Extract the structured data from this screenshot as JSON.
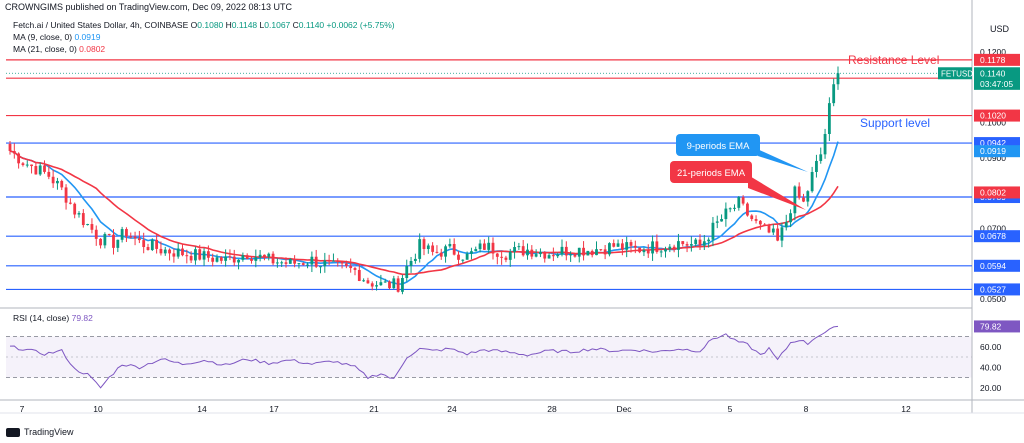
{
  "publisher": "CROWNGIMS published on TradingView.com, Dec 09, 2022 08:13 UTC",
  "symbol_line": {
    "name": "Fetch.ai / United States Dollar, 4h, COINBASE",
    "o_label": "O",
    "o": "0.1080",
    "h_label": "H",
    "h": "0.1148",
    "l_label": "L",
    "l": "0.1067",
    "c_label": "C",
    "c": "0.1140",
    "chg": "+0.0062 (+5.75%)"
  },
  "ma9": {
    "label": "MA (9, close, 0)",
    "value": "0.0919",
    "color": "#2196f3"
  },
  "ma21": {
    "label": "MA (21, close, 0)",
    "value": "0.0802",
    "color": "#f23645"
  },
  "rsi_line": {
    "label": "RSI (14, close)",
    "value": "79.82",
    "color": "#7e57c2"
  },
  "footer": {
    "brand": "TradingView"
  },
  "chart_data": {
    "type": "candlestick",
    "currency": "USD",
    "price_axis": {
      "ylim": [
        0.048,
        0.124
      ],
      "ticks": [
        "0.1200",
        "0.1000",
        "0.0900",
        "0.0700",
        "0.0500"
      ]
    },
    "rsi_axis": {
      "ylim": [
        10,
        90
      ],
      "ticks": [
        "60.00",
        "40.00",
        "20.00"
      ]
    },
    "x_ticks": [
      "7",
      "10",
      "14",
      "17",
      "21",
      "24",
      "28",
      "Dec",
      "5",
      "8",
      "12"
    ],
    "horizontal_levels": [
      {
        "value": 0.1178,
        "label": "0.1178",
        "color": "#f23645"
      },
      {
        "value": 0.1126,
        "label": "0.1126",
        "color": "#f23645"
      },
      {
        "value": 0.102,
        "label": "0.1020",
        "color": "#f23645"
      },
      {
        "value": 0.0942,
        "label": "0.0942",
        "color": "#2962ff"
      },
      {
        "value": 0.0789,
        "label": "0.0789",
        "color": "#2962ff"
      },
      {
        "value": 0.0678,
        "label": "0.0678",
        "color": "#2962ff"
      },
      {
        "value": 0.0594,
        "label": "0.0594",
        "color": "#2962ff"
      },
      {
        "value": 0.0527,
        "label": "0.0527",
        "color": "#2962ff"
      }
    ],
    "price_labels": [
      {
        "text": "0.1140",
        "value": 0.114,
        "color": "#089981"
      },
      {
        "text": "03:47:05",
        "value": 0.111,
        "color": "#089981"
      },
      {
        "text": "0.0919",
        "value": 0.0919,
        "color": "#2196f3"
      },
      {
        "text": "0.0802",
        "value": 0.0802,
        "color": "#f23645"
      }
    ],
    "symbol_tag": "FETUSD",
    "annotations": {
      "resistance": "Resistance Level",
      "support": "Support level",
      "ema9": "9-periods EMA",
      "ema21": "21-periods EMA"
    },
    "rsi_marker": "79.82",
    "key_path": [
      [
        0,
        0.092
      ],
      [
        3,
        0.089
      ],
      [
        6,
        0.087
      ],
      [
        9,
        0.085
      ],
      [
        12,
        0.081
      ],
      [
        15,
        0.075
      ],
      [
        18,
        0.071
      ],
      [
        21,
        0.067
      ],
      [
        24,
        0.066
      ],
      [
        27,
        0.069
      ],
      [
        30,
        0.066
      ],
      [
        35,
        0.064
      ],
      [
        40,
        0.063
      ],
      [
        45,
        0.062
      ],
      [
        50,
        0.061
      ],
      [
        55,
        0.063
      ],
      [
        60,
        0.061
      ],
      [
        65,
        0.06
      ],
      [
        70,
        0.061
      ],
      [
        75,
        0.059
      ],
      [
        80,
        0.058
      ],
      [
        83,
        0.055
      ],
      [
        86,
        0.054
      ],
      [
        90,
        0.054
      ],
      [
        92,
        0.059
      ],
      [
        95,
        0.065
      ],
      [
        98,
        0.063
      ],
      [
        102,
        0.064
      ],
      [
        106,
        0.062
      ],
      [
        110,
        0.065
      ],
      [
        115,
        0.063
      ],
      [
        120,
        0.064
      ],
      [
        125,
        0.063
      ],
      [
        130,
        0.064
      ],
      [
        135,
        0.064
      ],
      [
        140,
        0.065
      ],
      [
        145,
        0.064
      ],
      [
        150,
        0.065
      ],
      [
        155,
        0.066
      ],
      [
        160,
        0.065
      ],
      [
        163,
        0.07
      ],
      [
        166,
        0.074
      ],
      [
        169,
        0.077
      ],
      [
        171,
        0.074
      ],
      [
        174,
        0.07
      ],
      [
        177,
        0.068
      ],
      [
        178,
        0.066
      ],
      [
        180,
        0.072
      ],
      [
        182,
        0.08
      ],
      [
        184,
        0.077
      ],
      [
        186,
        0.085
      ],
      [
        188,
        0.091
      ],
      [
        189,
        0.097
      ],
      [
        190,
        0.104
      ],
      [
        191,
        0.11
      ],
      [
        192,
        0.114
      ]
    ],
    "rsi_path": [
      [
        0,
        60
      ],
      [
        4,
        57
      ],
      [
        8,
        53
      ],
      [
        12,
        56
      ],
      [
        15,
        38
      ],
      [
        18,
        33
      ],
      [
        21,
        20
      ],
      [
        23,
        30
      ],
      [
        26,
        43
      ],
      [
        30,
        40
      ],
      [
        35,
        48
      ],
      [
        40,
        43
      ],
      [
        45,
        47
      ],
      [
        50,
        42
      ],
      [
        55,
        48
      ],
      [
        60,
        44
      ],
      [
        65,
        47
      ],
      [
        70,
        43
      ],
      [
        75,
        46
      ],
      [
        80,
        40
      ],
      [
        83,
        30
      ],
      [
        86,
        34
      ],
      [
        89,
        28
      ],
      [
        92,
        50
      ],
      [
        95,
        58
      ],
      [
        98,
        56
      ],
      [
        102,
        58
      ],
      [
        106,
        53
      ],
      [
        110,
        57
      ],
      [
        115,
        55
      ],
      [
        120,
        52
      ],
      [
        125,
        56
      ],
      [
        130,
        55
      ],
      [
        135,
        58
      ],
      [
        140,
        56
      ],
      [
        145,
        57
      ],
      [
        150,
        55
      ],
      [
        155,
        58
      ],
      [
        160,
        56
      ],
      [
        163,
        68
      ],
      [
        166,
        72
      ],
      [
        168,
        66
      ],
      [
        171,
        62
      ],
      [
        174,
        52
      ],
      [
        176,
        58
      ],
      [
        178,
        47
      ],
      [
        181,
        64
      ],
      [
        183,
        67
      ],
      [
        185,
        63
      ],
      [
        187,
        70
      ],
      [
        189,
        74
      ],
      [
        192,
        80
      ]
    ]
  }
}
